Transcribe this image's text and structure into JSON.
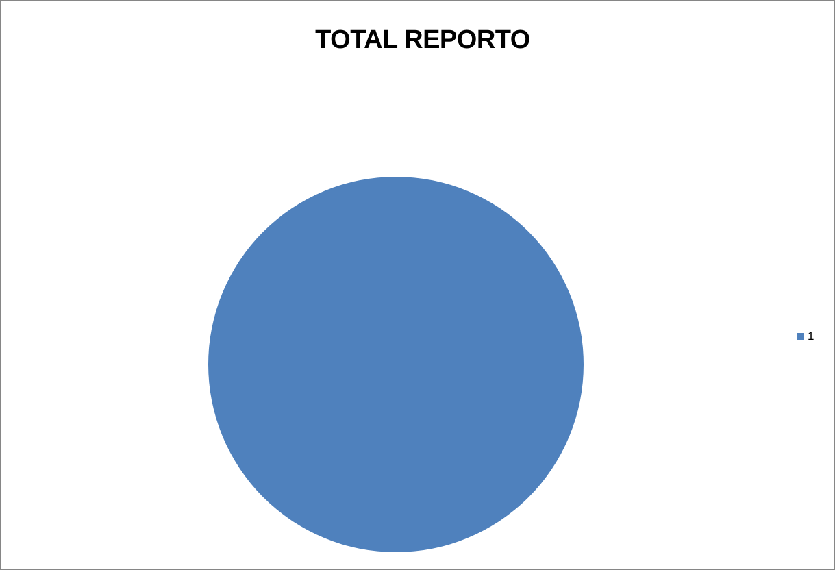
{
  "chart_data": {
    "type": "pie",
    "title": "TOTAL REPORTO",
    "categories": [
      "1"
    ],
    "values": [
      1
    ],
    "colors": [
      "#4f81bd"
    ],
    "legend_placement": "right"
  }
}
